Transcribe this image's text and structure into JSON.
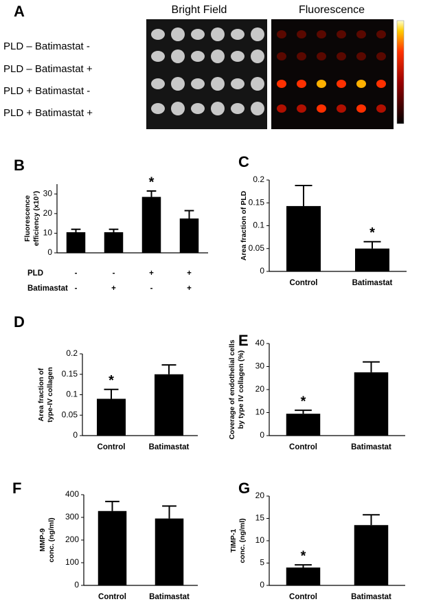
{
  "panel_a": {
    "label": "A",
    "titles": [
      "Bright Field",
      "Fluorescence"
    ],
    "rows": [
      "PLD –  Batimastat  -",
      "PLD –  Batimastat +",
      "PLD +  Batimastat  -",
      "PLD +  Batimastat +"
    ]
  },
  "chart_data": [
    {
      "type": "bar",
      "label": "B",
      "ylabel": [
        "Fluorescence",
        "efficiency (x10⁷)"
      ],
      "category_rows": [
        {
          "name": "PLD",
          "labels": [
            "-",
            "-",
            "+",
            "+"
          ]
        },
        {
          "name": "Batimastat",
          "labels": [
            "-",
            "+",
            "-",
            "+"
          ]
        }
      ],
      "values": [
        10.5,
        10.5,
        28.5,
        17.5
      ],
      "errors": [
        1.5,
        1.5,
        3,
        4
      ],
      "significance": [
        null,
        null,
        "*",
        null
      ],
      "color": "#000000",
      "ylim": [
        0,
        35
      ],
      "yticks": [
        0,
        10,
        20,
        30
      ]
    },
    {
      "type": "bar",
      "label": "C",
      "ylabel": [
        "Area fraction of PLD"
      ],
      "categories": [
        "Control",
        "Batimastat"
      ],
      "values": [
        0.143,
        0.05
      ],
      "errors": [
        0.045,
        0.015
      ],
      "significance": [
        null,
        "*"
      ],
      "color": "#000000",
      "ylim": [
        0,
        0.2
      ],
      "yticks": [
        0,
        0.05,
        0.1,
        0.15,
        0.2
      ]
    },
    {
      "type": "bar",
      "label": "D",
      "ylabel": [
        "Area fraction of",
        "type-IV collagen"
      ],
      "categories": [
        "Control",
        "Batimastat"
      ],
      "values": [
        0.09,
        0.15
      ],
      "errors": [
        0.023,
        0.023
      ],
      "significance": [
        "*",
        null
      ],
      "color": "#000000",
      "ylim": [
        0,
        0.2
      ],
      "yticks": [
        0,
        0.05,
        0.1,
        0.15,
        0.2
      ]
    },
    {
      "type": "bar",
      "label": "E",
      "ylabel": [
        "Coverage of endothelial cells",
        "by type IV collagen (%)"
      ],
      "categories": [
        "Control",
        "Batimastat"
      ],
      "values": [
        9.5,
        27.5
      ],
      "errors": [
        1.5,
        4.5
      ],
      "significance": [
        "*",
        null
      ],
      "color": "#000000",
      "ylim": [
        0,
        40
      ],
      "yticks": [
        0,
        10,
        20,
        30,
        40
      ]
    },
    {
      "type": "bar",
      "label": "F",
      "ylabel": [
        "MMP-9",
        "conc. (ng/ml)"
      ],
      "categories": [
        "Control",
        "Batimastat"
      ],
      "values": [
        328,
        295
      ],
      "errors": [
        42,
        55
      ],
      "significance": [
        null,
        null
      ],
      "color": "#000000",
      "ylim": [
        0,
        400
      ],
      "yticks": [
        0,
        100,
        200,
        300,
        400
      ]
    },
    {
      "type": "bar",
      "label": "G",
      "ylabel": [
        "TIMP-1",
        "conc. (ng/ml)"
      ],
      "categories": [
        "Control",
        "Batimastat"
      ],
      "values": [
        4,
        13.5
      ],
      "errors": [
        0.6,
        2.3
      ],
      "significance": [
        "*",
        null
      ],
      "color": "#000000",
      "ylim": [
        0,
        20
      ],
      "yticks": [
        0,
        5,
        10,
        15,
        20
      ]
    }
  ]
}
